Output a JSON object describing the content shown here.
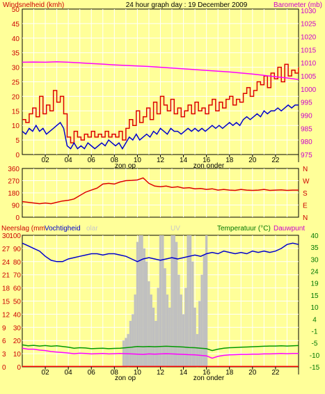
{
  "colors": {
    "background": "#ffff99",
    "panel_border": "#000000",
    "grid": "#ffffff",
    "wind_red": "#dd0000",
    "gust_blue": "#0000cc",
    "barometer_magenta": "#ff00ff",
    "direction_red": "#dd0000",
    "humidity_blue": "#0000cc",
    "temperature_green": "#009900",
    "dewpoint_magenta": "#ff00ff",
    "solar_grey": "#c0c0c0",
    "rain_red": "#ff0000",
    "uv_text": "#c8c8c8",
    "label_red": "#cc0000",
    "label_magenta": "#cc00cc",
    "label_green": "#007700"
  },
  "chart_data": [
    {
      "type": "line",
      "title": "24 hour graph day : 19 December 2009",
      "left_axis_label": "Windsnelheid (kmh)",
      "right_axis_label": "Barometer (mb)",
      "left_ticks": [
        "50",
        "45",
        "40",
        "35",
        "30",
        "25",
        "20",
        "15",
        "10",
        "5",
        "0"
      ],
      "right_ticks": [
        "1030",
        "1025",
        "1020",
        "1015",
        "1010",
        "1005",
        "1000",
        "995",
        "990",
        "985",
        "980",
        "975"
      ],
      "ylim_left": [
        0,
        50
      ],
      "ylim_right": [
        975,
        1030.5
      ],
      "x_ticks": [
        "02",
        "04",
        "06",
        "08",
        "10",
        "12",
        "14",
        "16",
        "18",
        "20",
        "22",
        "I"
      ],
      "annotations": [
        "zon op",
        "zon onder"
      ],
      "xlim": [
        0,
        24
      ],
      "series": [
        {
          "axis": "left",
          "color_key": "wind_red",
          "style": "step",
          "x": [
            0,
            0.3,
            0.6,
            0.9,
            1.2,
            1.5,
            1.8,
            2.1,
            2.4,
            2.7,
            3.0,
            3.3,
            3.6,
            3.9,
            4.2,
            4.5,
            4.8,
            5.1,
            5.4,
            5.7,
            6.0,
            6.3,
            6.6,
            6.9,
            7.2,
            7.5,
            7.8,
            8.1,
            8.4,
            8.7,
            9.0,
            9.3,
            9.6,
            9.9,
            10.2,
            10.5,
            10.8,
            11.1,
            11.4,
            11.7,
            12.0,
            12.3,
            12.6,
            12.9,
            13.2,
            13.5,
            13.8,
            14.1,
            14.4,
            14.7,
            15.0,
            15.3,
            15.6,
            15.9,
            16.2,
            16.5,
            16.8,
            17.1,
            17.4,
            17.7,
            18.0,
            18.3,
            18.6,
            18.9,
            19.2,
            19.5,
            19.8,
            20.1,
            20.4,
            20.7,
            21.0,
            21.3,
            21.6,
            21.9,
            22.2,
            22.5,
            22.8,
            23.1,
            23.4,
            23.7,
            24.0
          ],
          "values": [
            12,
            11,
            14,
            16,
            13,
            20,
            14,
            17,
            15,
            22,
            18,
            20,
            14,
            6,
            4,
            8,
            6,
            5,
            7,
            6,
            8,
            6,
            7,
            6,
            8,
            6,
            7,
            6,
            8,
            5,
            9,
            12,
            10,
            15,
            11,
            13,
            16,
            12,
            18,
            14,
            20,
            17,
            15,
            19,
            14,
            16,
            13,
            15,
            17,
            14,
            18,
            15,
            16,
            14,
            17,
            19,
            15,
            18,
            16,
            19,
            20,
            17,
            19,
            18,
            21,
            23,
            20,
            22,
            25,
            24,
            27,
            23,
            28,
            26,
            30,
            25,
            31,
            27,
            29,
            28,
            30
          ]
        },
        {
          "axis": "left",
          "color_key": "gust_blue",
          "style": "line",
          "x": [
            0,
            0.3,
            0.6,
            0.9,
            1.2,
            1.5,
            1.8,
            2.1,
            2.4,
            2.7,
            3.0,
            3.3,
            3.6,
            3.9,
            4.2,
            4.5,
            4.8,
            5.1,
            5.4,
            5.7,
            6.0,
            6.3,
            6.6,
            6.9,
            7.2,
            7.5,
            7.8,
            8.1,
            8.4,
            8.7,
            9.0,
            9.3,
            9.6,
            9.9,
            10.2,
            10.5,
            10.8,
            11.1,
            11.4,
            11.7,
            12.0,
            12.3,
            12.6,
            12.9,
            13.2,
            13.5,
            13.8,
            14.1,
            14.4,
            14.7,
            15.0,
            15.3,
            15.6,
            15.9,
            16.2,
            16.5,
            16.8,
            17.1,
            17.4,
            17.7,
            18.0,
            18.3,
            18.6,
            18.9,
            19.2,
            19.5,
            19.8,
            20.1,
            20.4,
            20.7,
            21.0,
            21.3,
            21.6,
            21.9,
            22.2,
            22.5,
            22.8,
            23.1,
            23.4,
            23.7,
            24.0
          ],
          "values": [
            8,
            7,
            9,
            8,
            10,
            8,
            9,
            7,
            8,
            9,
            10,
            11,
            9,
            3,
            2,
            4,
            2,
            3,
            2,
            4,
            3,
            2,
            3,
            4,
            3,
            5,
            4,
            3,
            4,
            2,
            4,
            6,
            5,
            7,
            5,
            6,
            7,
            6,
            8,
            7,
            9,
            8,
            7,
            9,
            8,
            8,
            7,
            8,
            9,
            8,
            9,
            8,
            9,
            8,
            9,
            10,
            9,
            10,
            9,
            10,
            11,
            10,
            11,
            10,
            12,
            13,
            12,
            13,
            14,
            13,
            15,
            14,
            15,
            15,
            16,
            15,
            16,
            17,
            16,
            17,
            17
          ]
        },
        {
          "axis": "right",
          "color_key": "barometer_magenta",
          "style": "line",
          "x": [
            0,
            1,
            2,
            3,
            4,
            5,
            6,
            7,
            8,
            9,
            10,
            11,
            12,
            13,
            14,
            15,
            16,
            17,
            18,
            19,
            20,
            21,
            22,
            23,
            24
          ],
          "values": [
            1010.2,
            1010.3,
            1010.2,
            1010.4,
            1010.2,
            1010.0,
            1009.7,
            1009.5,
            1009.2,
            1009.0,
            1008.8,
            1008.6,
            1008.3,
            1008.0,
            1007.7,
            1007.4,
            1007.1,
            1006.8,
            1006.5,
            1006.1,
            1005.7,
            1005.2,
            1004.7,
            1004.2,
            1003.6
          ]
        }
      ]
    },
    {
      "type": "line",
      "left_ticks": [
        "360",
        "270",
        "180",
        "90",
        "0"
      ],
      "right_ticks": [
        "N",
        "W",
        "S",
        "E",
        "N"
      ],
      "ylim": [
        0,
        360
      ],
      "xlim": [
        0,
        24
      ],
      "series": [
        {
          "axis": "left",
          "color_key": "direction_red",
          "style": "line",
          "x": [
            0,
            0.5,
            1,
            1.5,
            2,
            2.5,
            3,
            3.5,
            4,
            4.5,
            5,
            5.5,
            6,
            6.5,
            7,
            7.5,
            8,
            8.5,
            9,
            9.5,
            10,
            10.5,
            11,
            11.5,
            12,
            12.5,
            13,
            13.5,
            14,
            14.5,
            15,
            15.5,
            16,
            16.5,
            17,
            17.5,
            18,
            18.5,
            19,
            19.5,
            20,
            20.5,
            21,
            21.5,
            22,
            22.5,
            23,
            23.5,
            24
          ],
          "values": [
            115,
            110,
            105,
            100,
            105,
            100,
            110,
            120,
            125,
            135,
            160,
            185,
            200,
            215,
            245,
            250,
            245,
            260,
            270,
            272,
            275,
            290,
            250,
            230,
            225,
            230,
            220,
            225,
            215,
            218,
            210,
            212,
            205,
            210,
            200,
            205,
            200,
            198,
            205,
            200,
            198,
            200,
            205,
            198,
            200,
            202,
            198,
            200,
            200
          ]
        }
      ]
    },
    {
      "type": "line",
      "left_axis_labels": [
        "Neerslag (mm",
        "Vochtigheid",
        "olar",
        "UV"
      ],
      "right_axis_labels": [
        "Temperatuur (°C)",
        "Dauwpunt"
      ],
      "left_ticks": [
        "100",
        "90",
        "80",
        "70",
        "60",
        "50",
        "40",
        "30",
        "20",
        "10",
        "0"
      ],
      "rain_ticks": [
        "30",
        "27",
        "24",
        "21",
        "18",
        "15",
        "12",
        "9",
        "6",
        "3",
        "0"
      ],
      "right_ticks": [
        "40",
        "35",
        "30",
        "24",
        "19",
        "15",
        "10",
        "4",
        "-1",
        "-5",
        "-10",
        "-15"
      ],
      "ylim": [
        0,
        100
      ],
      "ylim_temperature": [
        -15,
        40
      ],
      "xlim": [
        0,
        24
      ],
      "x_ticks": [
        "02",
        "04",
        "06",
        "08",
        "10",
        "12",
        "14",
        "16",
        "18",
        "20",
        "22",
        "I"
      ],
      "annotations": [
        "zon op",
        "zon onder"
      ],
      "series": [
        {
          "axis": "left",
          "color_key": "solar_grey",
          "style": "bars",
          "x": [
            8.8,
            9.0,
            9.2,
            9.4,
            9.6,
            9.8,
            10.0,
            10.2,
            10.4,
            10.6,
            10.8,
            11.0,
            11.2,
            11.4,
            11.6,
            11.8,
            12.0,
            12.2,
            12.4,
            12.6,
            12.8,
            13.0,
            13.2,
            13.4,
            13.6,
            13.8,
            14.0,
            14.2,
            14.4,
            14.6,
            14.8,
            15.0,
            15.2,
            15.4,
            15.6,
            15.8,
            16.0
          ],
          "values": [
            20,
            22,
            25,
            35,
            40,
            55,
            95,
            100,
            100,
            90,
            80,
            65,
            55,
            45,
            35,
            60,
            100,
            100,
            75,
            55,
            45,
            100,
            100,
            95,
            70,
            55,
            40,
            60,
            100,
            100,
            80,
            45,
            25,
            50,
            70,
            85,
            100
          ]
        },
        {
          "axis": "left",
          "color_key": "humidity_blue",
          "style": "line",
          "x": [
            0,
            0.5,
            1,
            1.5,
            2,
            2.5,
            3,
            3.5,
            4,
            4.5,
            5,
            5.5,
            6,
            6.5,
            7,
            7.5,
            8,
            8.5,
            9,
            9.5,
            10,
            10.5,
            11,
            11.5,
            12,
            12.5,
            13,
            13.5,
            14,
            14.5,
            15,
            15.5,
            16,
            16.5,
            17,
            17.5,
            18,
            18.5,
            19,
            19.5,
            20,
            20.5,
            21,
            21.5,
            22,
            22.5,
            23,
            23.5,
            24
          ],
          "values": [
            94,
            92,
            90,
            88,
            84,
            81,
            80,
            80,
            82,
            83,
            84,
            85,
            86,
            86,
            85,
            86,
            86,
            85,
            84,
            82,
            80,
            82,
            83,
            82,
            81,
            82,
            83,
            82,
            83,
            84,
            85,
            84,
            86,
            87,
            86,
            88,
            87,
            86,
            87,
            86,
            88,
            87,
            88,
            87,
            88,
            90,
            93,
            94,
            93
          ]
        },
        {
          "axis": "right",
          "color_key": "temperature_green",
          "style": "line",
          "x": [
            0,
            0.5,
            1,
            1.5,
            2,
            2.5,
            3,
            3.5,
            4,
            4.5,
            5,
            5.5,
            6,
            6.5,
            7,
            7.5,
            8,
            8.5,
            9,
            9.5,
            10,
            10.5,
            11,
            11.5,
            12,
            12.5,
            13,
            13.5,
            14,
            14.5,
            15,
            15.5,
            16,
            16.5,
            17,
            17.5,
            18,
            18.5,
            19,
            19.5,
            20,
            20.5,
            21,
            21.5,
            22,
            22.5,
            23,
            23.5,
            24
          ],
          "values": [
            -5.8,
            -6.2,
            -6.0,
            -6.3,
            -6.1,
            -6.4,
            -6.2,
            -6.5,
            -6.8,
            -7.2,
            -7.0,
            -7.1,
            -7.4,
            -7.3,
            -7.2,
            -7.4,
            -7.3,
            -7.2,
            -7.0,
            -6.8,
            -6.5,
            -6.6,
            -6.5,
            -6.6,
            -6.5,
            -6.4,
            -6.5,
            -6.6,
            -6.7,
            -6.9,
            -7.0,
            -7.2,
            -7.4,
            -8.2,
            -7.6,
            -7.2,
            -7.0,
            -6.9,
            -6.8,
            -6.7,
            -6.6,
            -6.5,
            -6.4,
            -6.3,
            -6.3,
            -6.2,
            -6.3,
            -6.2,
            -6.1
          ]
        },
        {
          "axis": "right",
          "color_key": "dewpoint_magenta",
          "style": "line",
          "x": [
            0,
            0.5,
            1,
            1.5,
            2,
            2.5,
            3,
            3.5,
            4,
            4.5,
            5,
            5.5,
            6,
            6.5,
            7,
            7.5,
            8,
            8.5,
            9,
            9.5,
            10,
            10.5,
            11,
            11.5,
            12,
            12.5,
            13,
            13.5,
            14,
            14.5,
            15,
            15.5,
            16,
            16.5,
            17,
            17.5,
            18,
            18.5,
            19,
            19.5,
            20,
            20.5,
            21,
            21.5,
            22,
            22.5,
            23,
            23.5,
            24
          ],
          "values": [
            -7.2,
            -7.6,
            -7.6,
            -8.0,
            -8.2,
            -8.6,
            -8.8,
            -9.0,
            -9.2,
            -9.5,
            -9.3,
            -9.4,
            -9.6,
            -9.5,
            -9.4,
            -9.6,
            -9.5,
            -9.4,
            -9.5,
            -9.6,
            -9.7,
            -9.8,
            -9.6,
            -9.7,
            -9.6,
            -9.5,
            -9.6,
            -9.7,
            -9.8,
            -9.9,
            -10.0,
            -10.2,
            -10.4,
            -11.4,
            -10.6,
            -10.2,
            -10.0,
            -9.9,
            -9.8,
            -9.8,
            -9.7,
            -9.7,
            -9.6,
            -9.6,
            -9.5,
            -9.4,
            -9.5,
            -9.4,
            -9.4
          ]
        },
        {
          "axis": "left",
          "color_key": "rain_red",
          "style": "line",
          "x": [
            0,
            24
          ],
          "values": [
            0.3,
            0.3
          ]
        }
      ]
    }
  ]
}
